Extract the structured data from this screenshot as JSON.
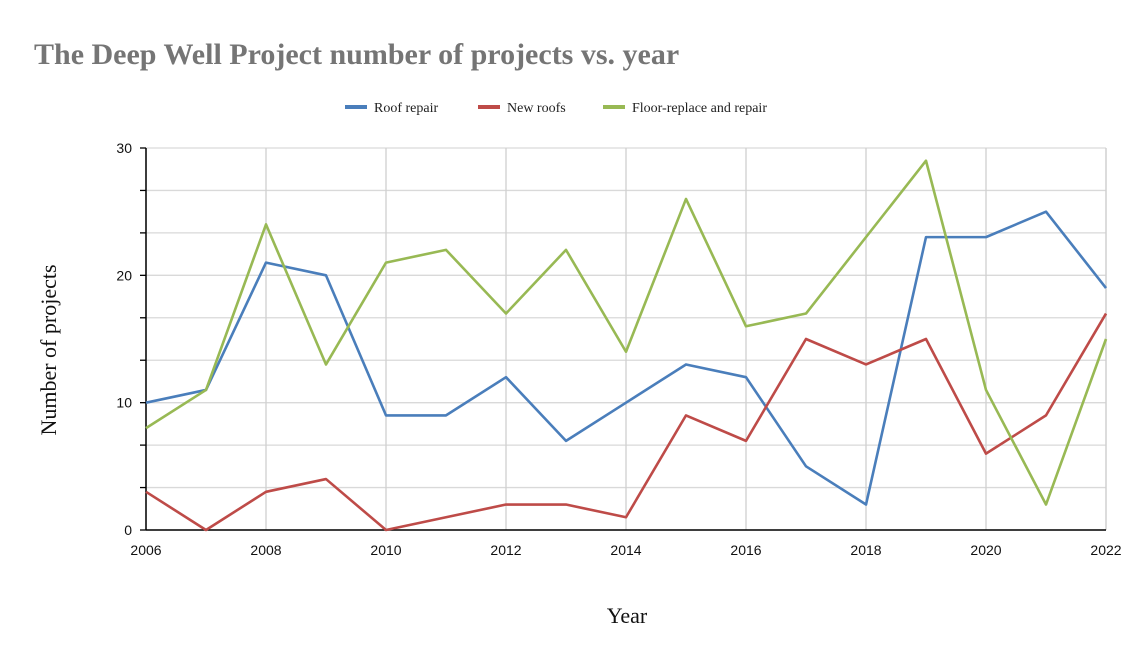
{
  "chart_data": {
    "type": "line",
    "title": "The Deep Well Project number of projects vs. year",
    "xlabel": "Year",
    "ylabel": "Number of projects",
    "x": [
      2006,
      2007,
      2008,
      2009,
      2010,
      2011,
      2012,
      2013,
      2014,
      2015,
      2016,
      2017,
      2018,
      2019,
      2020,
      2021,
      2022
    ],
    "xlim": [
      2006,
      2022
    ],
    "ylim": [
      0,
      30
    ],
    "xticks": [
      "2006",
      "2008",
      "2010",
      "2012",
      "2014",
      "2016",
      "2018",
      "2020",
      "2022"
    ],
    "yticks": [
      "0",
      "10",
      "20",
      "30"
    ],
    "grid": true,
    "legend_position": "top",
    "series": [
      {
        "name": "Roof repair",
        "color": "#4a7ebb",
        "values": [
          10,
          11,
          21,
          20,
          9,
          9,
          12,
          7,
          10,
          13,
          12,
          5,
          2,
          23,
          23,
          25,
          19
        ]
      },
      {
        "name": "New roofs",
        "color": "#be4b48",
        "values": [
          3,
          0,
          3,
          4,
          0,
          1,
          2,
          2,
          1,
          9,
          7,
          15,
          13,
          15,
          6,
          9,
          17
        ]
      },
      {
        "name": "Floor-replace and repair",
        "color": "#98b954",
        "values": [
          8,
          11,
          24,
          13,
          21,
          22,
          17,
          22,
          14,
          26,
          16,
          17,
          23,
          29,
          11,
          2,
          15
        ]
      }
    ]
  }
}
